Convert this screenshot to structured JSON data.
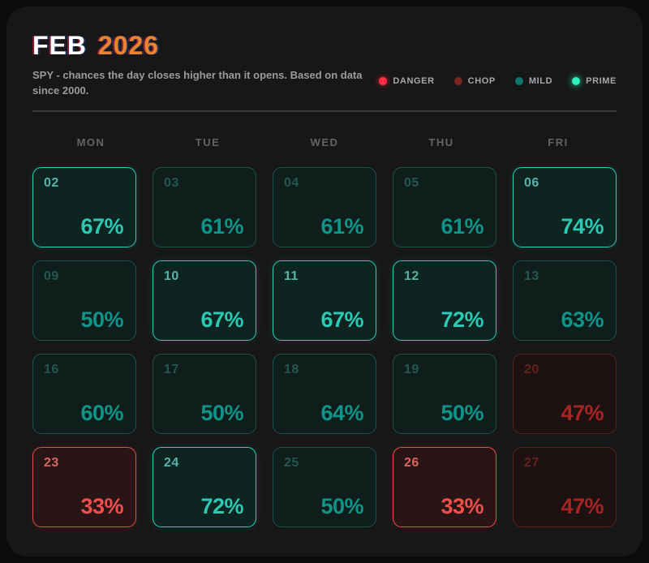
{
  "header": {
    "month": "FEB",
    "year": "2026",
    "subtitle": "SPY - chances the day closes higher than it opens. Based on data since 2000."
  },
  "legend": [
    {
      "key": "danger",
      "label": "DANGER",
      "color": "#ff2e44"
    },
    {
      "key": "chop",
      "label": "CHOP",
      "color": "#7c2422"
    },
    {
      "key": "mild",
      "label": "MILD",
      "color": "#0f766e"
    },
    {
      "key": "prime",
      "label": "PRIME",
      "color": "#2df0bb"
    }
  ],
  "weekdays": [
    "MON",
    "TUE",
    "WED",
    "THU",
    "FRI"
  ],
  "colors": {
    "accent_orange": "#e8832f",
    "prime": "#2dd4bf",
    "mild": "#0f9488",
    "danger": "#f04f4b",
    "chop": "#a52522",
    "card_background": "#171717",
    "page_background": "#0b0b0c"
  },
  "days": [
    {
      "date": "02",
      "pct": "67%",
      "category": "prime",
      "weekday": "MON"
    },
    {
      "date": "03",
      "pct": "61%",
      "category": "mild",
      "weekday": "TUE"
    },
    {
      "date": "04",
      "pct": "61%",
      "category": "mild",
      "weekday": "WED"
    },
    {
      "date": "05",
      "pct": "61%",
      "category": "mild",
      "weekday": "THU"
    },
    {
      "date": "06",
      "pct": "74%",
      "category": "prime",
      "weekday": "FRI"
    },
    {
      "date": "09",
      "pct": "50%",
      "category": "mild",
      "weekday": "MON"
    },
    {
      "date": "10",
      "pct": "67%",
      "category": "prime",
      "weekday": "TUE"
    },
    {
      "date": "11",
      "pct": "67%",
      "category": "prime",
      "weekday": "WED"
    },
    {
      "date": "12",
      "pct": "72%",
      "category": "prime",
      "weekday": "THU"
    },
    {
      "date": "13",
      "pct": "63%",
      "category": "mild",
      "weekday": "FRI"
    },
    {
      "date": "16",
      "pct": "60%",
      "category": "mild",
      "weekday": "MON"
    },
    {
      "date": "17",
      "pct": "50%",
      "category": "mild",
      "weekday": "TUE"
    },
    {
      "date": "18",
      "pct": "64%",
      "category": "mild",
      "weekday": "WED"
    },
    {
      "date": "19",
      "pct": "50%",
      "category": "mild",
      "weekday": "THU"
    },
    {
      "date": "20",
      "pct": "47%",
      "category": "chop",
      "weekday": "FRI"
    },
    {
      "date": "23",
      "pct": "33%",
      "category": "danger",
      "weekday": "MON"
    },
    {
      "date": "24",
      "pct": "72%",
      "category": "prime",
      "weekday": "TUE"
    },
    {
      "date": "25",
      "pct": "50%",
      "category": "mild",
      "weekday": "WED"
    },
    {
      "date": "26",
      "pct": "33%",
      "category": "danger",
      "weekday": "THU"
    },
    {
      "date": "27",
      "pct": "47%",
      "category": "chop",
      "weekday": "FRI"
    }
  ],
  "chart_data": {
    "type": "heatmap",
    "title": "FEB 2026",
    "subtitle": "SPY - chances the day closes higher than it opens. Based on data since 2000.",
    "columns": [
      "MON",
      "TUE",
      "WED",
      "THU",
      "FRI"
    ],
    "unit": "%",
    "legend_entries": [
      "DANGER",
      "CHOP",
      "MILD",
      "PRIME"
    ],
    "rows": [
      {
        "week": 1,
        "days": [
          2,
          3,
          4,
          5,
          6
        ],
        "values": [
          67,
          61,
          61,
          61,
          74
        ],
        "categories": [
          "prime",
          "mild",
          "mild",
          "mild",
          "prime"
        ]
      },
      {
        "week": 2,
        "days": [
          9,
          10,
          11,
          12,
          13
        ],
        "values": [
          50,
          67,
          67,
          72,
          63
        ],
        "categories": [
          "mild",
          "prime",
          "prime",
          "prime",
          "mild"
        ]
      },
      {
        "week": 3,
        "days": [
          16,
          17,
          18,
          19,
          20
        ],
        "values": [
          60,
          50,
          64,
          50,
          47
        ],
        "categories": [
          "mild",
          "mild",
          "mild",
          "mild",
          "chop"
        ]
      },
      {
        "week": 4,
        "days": [
          23,
          24,
          25,
          26,
          27
        ],
        "values": [
          33,
          72,
          50,
          33,
          47
        ],
        "categories": [
          "danger",
          "prime",
          "mild",
          "danger",
          "chop"
        ]
      }
    ]
  }
}
